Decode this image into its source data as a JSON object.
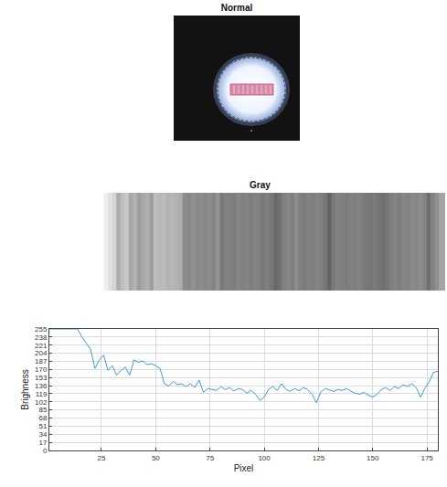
{
  "images": [
    {
      "title": "Normal"
    },
    {
      "title": "Gray"
    }
  ],
  "chart_data": {
    "type": "line",
    "x_label": "Pixel",
    "y_label": "Brighness",
    "x": [
      1,
      5,
      10,
      14,
      16,
      18,
      20,
      22,
      24,
      26,
      28,
      30,
      32,
      34,
      36,
      38,
      40,
      42,
      44,
      46,
      48,
      50,
      52,
      54,
      56,
      58,
      60,
      62,
      64,
      66,
      68,
      70,
      72,
      74,
      76,
      78,
      80,
      82,
      84,
      86,
      88,
      90,
      92,
      94,
      96,
      98,
      100,
      102,
      104,
      106,
      108,
      110,
      112,
      114,
      116,
      118,
      120,
      122,
      124,
      126,
      128,
      130,
      132,
      134,
      136,
      138,
      140,
      142,
      144,
      146,
      148,
      150,
      152,
      154,
      156,
      158,
      160,
      162,
      164,
      166,
      168,
      170,
      172,
      174,
      176,
      178,
      180
    ],
    "values": [
      255,
      255,
      255,
      255,
      238,
      225,
      212,
      172,
      190,
      200,
      168,
      178,
      158,
      168,
      175,
      158,
      190,
      185,
      188,
      180,
      182,
      178,
      172,
      140,
      135,
      145,
      138,
      140,
      134,
      140,
      132,
      148,
      122,
      130,
      128,
      126,
      134,
      128,
      132,
      125,
      130,
      128,
      120,
      126,
      118,
      105,
      112,
      128,
      134,
      126,
      140,
      128,
      124,
      130,
      125,
      132,
      128,
      118,
      100,
      122,
      130,
      127,
      124,
      128,
      126,
      130,
      124,
      120,
      118,
      122,
      116,
      112,
      118,
      128,
      132,
      126,
      134,
      130,
      138,
      134,
      140,
      132,
      112,
      130,
      144,
      164,
      166
    ],
    "color": "#3f9ad6",
    "xlim": [
      1,
      180
    ],
    "ylim": [
      0,
      255
    ],
    "xticks": [
      25,
      50,
      75,
      100,
      125,
      150,
      175
    ],
    "yticks": [
      0,
      17,
      34,
      51,
      68,
      85,
      102,
      119,
      136,
      153,
      170,
      187,
      204,
      221,
      238,
      255
    ],
    "grid": true
  }
}
